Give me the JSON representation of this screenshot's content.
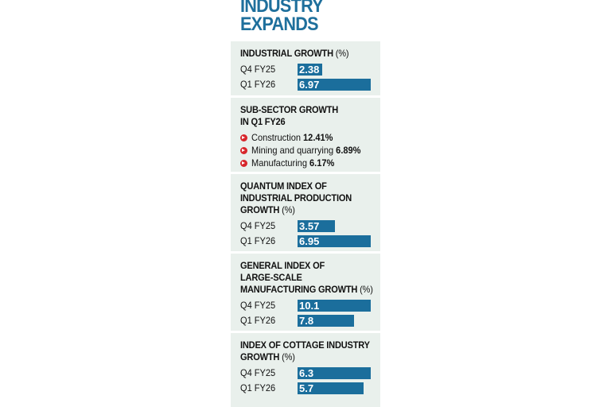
{
  "title_lines": [
    "INDUSTRY",
    "EXPANDS"
  ],
  "colors": {
    "bar": "#1b6e9c",
    "title": "#1e6f9c",
    "panel_bg": "#e9f0ec",
    "bullet": "#d7262b"
  },
  "chart_data": [
    {
      "type": "bar",
      "title": "INDUSTRIAL GROWTH",
      "unit": "(%)",
      "categories": [
        "Q4 FY25",
        "Q1 FY26"
      ],
      "values": [
        2.38,
        6.97
      ],
      "value_labels": [
        "2.38",
        "6.97"
      ]
    },
    {
      "type": "table",
      "title": "SUB-SECTOR GROWTH IN Q1 FY26",
      "items": [
        {
          "label": "Construction",
          "value": "12.41%"
        },
        {
          "label": "Mining and quarrying",
          "value": "6.89%"
        },
        {
          "label": "Manufacturing",
          "value": "6.17%"
        }
      ]
    },
    {
      "type": "bar",
      "title": "QUANTUM INDEX OF INDUSTRIAL PRODUCTION GROWTH",
      "unit": "(%)",
      "categories": [
        "Q4 FY25",
        "Q1 FY26"
      ],
      "values": [
        3.57,
        6.95
      ],
      "value_labels": [
        "3.57",
        "6.95"
      ]
    },
    {
      "type": "bar",
      "title": "GENERAL INDEX OF LARGE-SCALE MANUFACTURING GROWTH",
      "unit": "(%)",
      "categories": [
        "Q4 FY25",
        "Q1 FY26"
      ],
      "values": [
        10.1,
        7.8
      ],
      "value_labels": [
        "10.1",
        "7.8"
      ]
    },
    {
      "type": "bar",
      "title": "INDEX OF COTTAGE INDUSTRY GROWTH",
      "unit": "(%)",
      "categories": [
        "Q4 FY25",
        "Q1 FY26"
      ],
      "values": [
        6.3,
        5.7
      ],
      "value_labels": [
        "6.3",
        "5.7"
      ]
    }
  ],
  "panel_title_lines": [
    [
      "INDUSTRIAL GROWTH"
    ],
    [
      "SUB-SECTOR GROWTH",
      "IN Q1 FY26"
    ],
    [
      "QUANTUM INDEX OF",
      "INDUSTRIAL PRODUCTION",
      "GROWTH"
    ],
    [
      "GENERAL INDEX OF",
      "LARGE-SCALE",
      "MANUFACTURING GROWTH"
    ],
    [
      "INDEX OF COTTAGE INDUSTRY",
      "GROWTH"
    ]
  ]
}
